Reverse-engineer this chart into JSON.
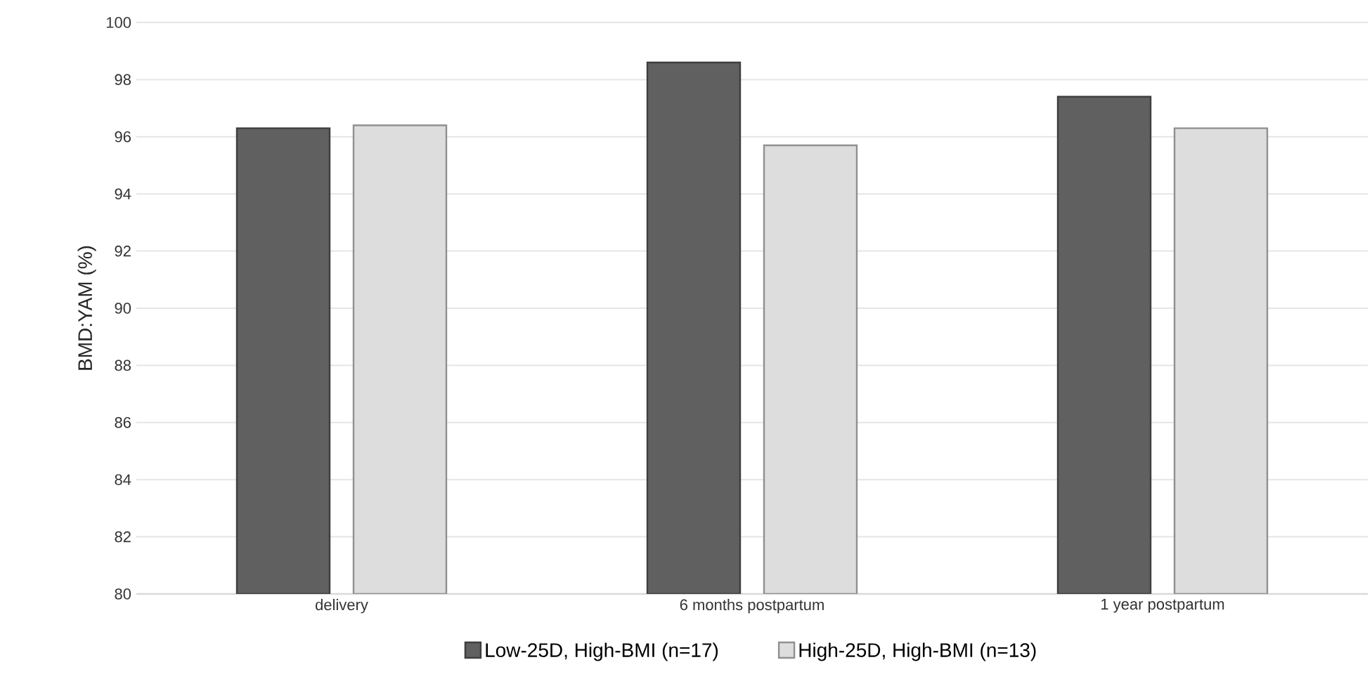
{
  "chart_data": {
    "type": "bar",
    "ylabel": "BMD:YAM (%)",
    "categories": [
      "delivery",
      "6 months postpartum",
      "1 year postpartum"
    ],
    "series": [
      {
        "name": "Low-25D, High-BMI (n=17)",
        "color": "#606060",
        "values": [
          96.3,
          98.6,
          97.4
        ]
      },
      {
        "name": "High-25D, High-BMI (n=13)",
        "color": "#dcdddc",
        "values": [
          96.4,
          95.7,
          96.3
        ]
      }
    ],
    "ylim": [
      80,
      100
    ],
    "yticks": [
      80,
      82,
      84,
      86,
      88,
      90,
      92,
      94,
      96,
      98,
      100
    ],
    "grid": "y",
    "legend": "bottom"
  }
}
